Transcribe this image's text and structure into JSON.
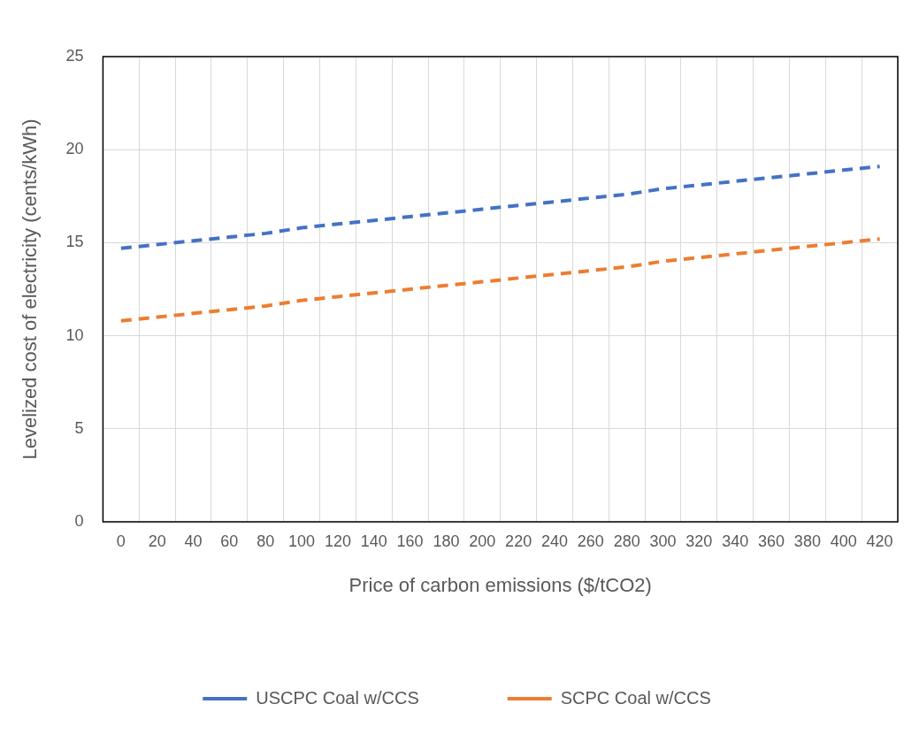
{
  "chart_data": {
    "type": "line",
    "xlabel": "Price of carbon emissions ($/tCO2)",
    "ylabel": "Levelized cost of electricity (cents/kWh)",
    "categories": [
      "0",
      "20",
      "40",
      "60",
      "80",
      "100",
      "120",
      "140",
      "160",
      "180",
      "200",
      "220",
      "240",
      "260",
      "280",
      "300",
      "320",
      "340",
      "360",
      "380",
      "400",
      "420"
    ],
    "series": [
      {
        "name": "USCPC Coal w/CCS",
        "color": "#4472c4",
        "values": [
          14.7,
          14.9,
          15.1,
          15.3,
          15.5,
          15.8,
          16.0,
          16.2,
          16.4,
          16.6,
          16.8,
          17.0,
          17.2,
          17.4,
          17.6,
          17.9,
          18.1,
          18.3,
          18.5,
          18.7,
          18.9,
          19.1
        ]
      },
      {
        "name": "SCPC Coal w/CCS",
        "color": "#ed7d31",
        "values": [
          10.8,
          11.0,
          11.2,
          11.4,
          11.6,
          11.9,
          12.1,
          12.3,
          12.5,
          12.7,
          12.9,
          13.1,
          13.3,
          13.5,
          13.7,
          14.0,
          14.2,
          14.4,
          14.6,
          14.8,
          15.0,
          15.2
        ]
      }
    ],
    "ylim": [
      0,
      25
    ],
    "yticks": [
      0,
      5,
      10,
      15,
      20,
      25
    ],
    "grid": true,
    "legend": "bottom",
    "marker": "none",
    "line_style": "dashed"
  }
}
